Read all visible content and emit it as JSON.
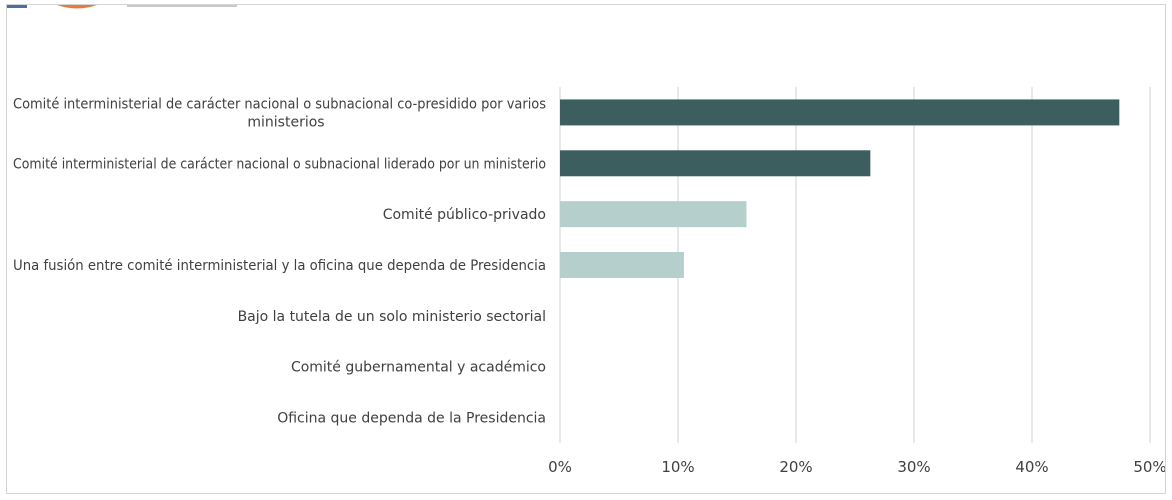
{
  "chart_data": {
    "type": "bar",
    "orientation": "horizontal",
    "title": "",
    "xlabel": "",
    "ylabel": "",
    "categories": [
      [
        "Comité interministerial de carácter nacional o subnacional co-presidido por varios",
        "ministerios"
      ],
      [
        "Comité interministerial de carácter nacional o subnacional liderado por un ministerio"
      ],
      [
        "Comité público-privado"
      ],
      [
        "Una fusión entre comité interministerial y la oficina que dependa de Presidencia"
      ],
      [
        "Bajo la tutela de un solo ministerio sectorial"
      ],
      [
        "Comité gubernamental y académico"
      ],
      [
        "Oficina que dependa de la Presidencia"
      ]
    ],
    "values": [
      47.4,
      26.3,
      15.8,
      10.5,
      0,
      0,
      0
    ],
    "bar_colors": [
      "#3d5e5e",
      "#3d5e5e",
      "#b5d0cc",
      "#b5d0cc",
      "#b5d0cc",
      "#b5d0cc",
      "#b5d0cc"
    ],
    "xlim": [
      0,
      50
    ],
    "xticks": [
      0,
      10,
      20,
      30,
      40,
      50
    ],
    "xtick_labels": [
      "0%",
      "10%",
      "20%",
      "30%",
      "40%",
      "50%"
    ],
    "grid": "vertical",
    "legend": "none"
  },
  "colors": {
    "gridline": "#d9d9d9",
    "label": "#404040",
    "logo": [
      "#4a6fa5",
      "#e87a3a",
      "#c9c9c9"
    ]
  }
}
